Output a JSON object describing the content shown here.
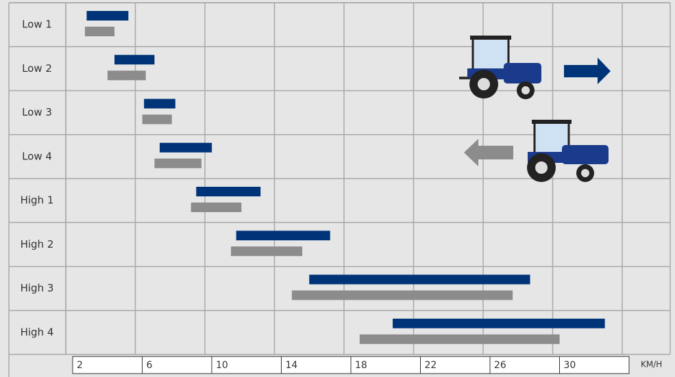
{
  "chart_data": {
    "type": "range-bar",
    "categories": [
      "Low 1",
      "Low 2",
      "Low 3",
      "Low 4",
      "High 1",
      "High 2",
      "High 3",
      "High 4"
    ],
    "series": [
      {
        "color": "#003478",
        "values": [
          [
            3.2,
            5.6
          ],
          [
            4.8,
            7.1
          ],
          [
            6.5,
            8.3
          ],
          [
            7.4,
            10.4
          ],
          [
            9.5,
            13.2
          ],
          [
            11.8,
            17.2
          ],
          [
            16.0,
            28.7
          ],
          [
            20.8,
            33.0
          ]
        ]
      },
      {
        "color": "#8c8c8c",
        "values": [
          [
            3.1,
            4.8
          ],
          [
            4.4,
            6.6
          ],
          [
            6.4,
            8.1
          ],
          [
            7.1,
            9.8
          ],
          [
            9.2,
            12.1
          ],
          [
            11.5,
            15.6
          ],
          [
            15.0,
            27.7
          ],
          [
            18.9,
            30.4
          ]
        ]
      }
    ],
    "xlim": [
      2,
      34
    ],
    "xticks": [
      2,
      6,
      10,
      14,
      18,
      22,
      26,
      30
    ],
    "xlabel": "KM/H",
    "grid": true
  }
}
